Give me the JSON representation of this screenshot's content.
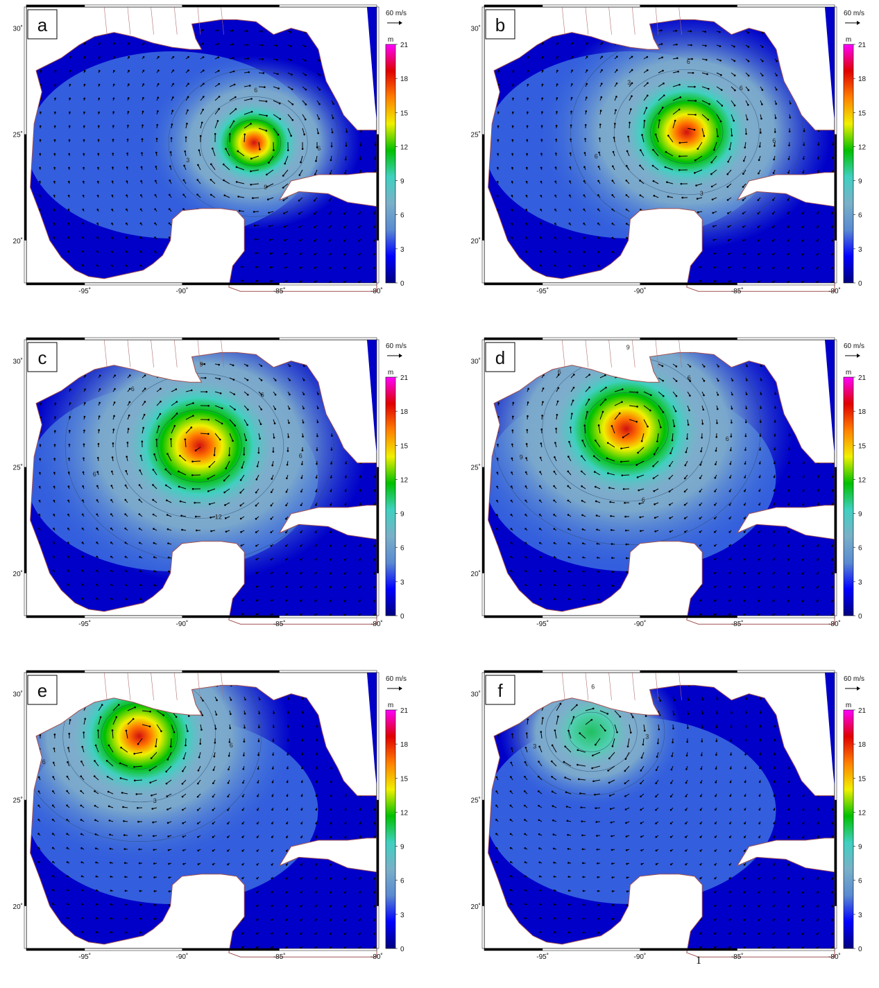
{
  "figure": {
    "panels": [
      {
        "letter": "a",
        "contours": [
          "6",
          "6",
          "3",
          "9"
        ]
      },
      {
        "letter": "b",
        "contours": [
          "6",
          "6",
          "6",
          "3",
          "6",
          "3"
        ]
      },
      {
        "letter": "c",
        "contours": [
          "9",
          "6",
          "6",
          "12",
          "6",
          "6"
        ]
      },
      {
        "letter": "d",
        "contours": [
          "9",
          "6",
          "9",
          "6",
          "6",
          "6"
        ]
      },
      {
        "letter": "e",
        "contours": [
          "9",
          "6",
          "6",
          "3"
        ]
      },
      {
        "letter": "f",
        "contours": [
          "6",
          "3",
          "3"
        ]
      }
    ],
    "x_ticks": [
      "-95˚",
      "-90˚",
      "-85˚",
      "-80˚"
    ],
    "y_ticks": [
      "30˚",
      "25˚",
      "20˚"
    ],
    "colorbar": {
      "unit": "m",
      "ticks": [
        "21",
        "18",
        "15",
        "12",
        "9",
        "6",
        "3",
        "0"
      ],
      "colors": [
        "#000080",
        "#0000ff",
        "#5a8ad0",
        "#7ab0c8",
        "#40d0c0",
        "#00c000",
        "#f0f000",
        "#ff8000",
        "#e00000",
        "#ff00ff"
      ]
    },
    "vector_scale": "60 m/s",
    "footnote_mark": "1",
    "colors": {
      "ocean_deep": "#0000c8",
      "land": "#ffffff",
      "land_border": "#a05050"
    }
  }
}
